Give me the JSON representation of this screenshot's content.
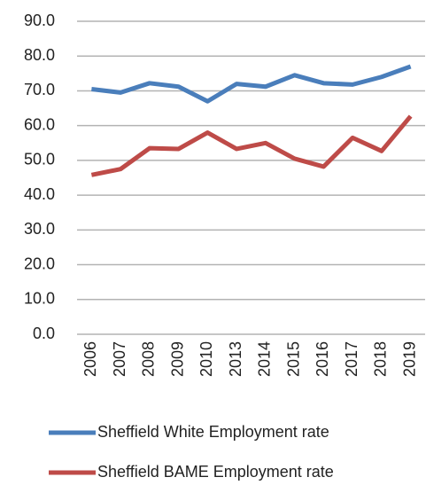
{
  "chart_data": {
    "type": "line",
    "categories": [
      "2006",
      "2007",
      "2008",
      "2009",
      "2010",
      "2013",
      "2014",
      "2015",
      "2016",
      "2017",
      "2018",
      "2019"
    ],
    "series": [
      {
        "name": "Sheffield White Employment rate",
        "color": "#4a7ebb",
        "values": [
          70.5,
          69.5,
          72.2,
          71.2,
          67.0,
          72.0,
          71.2,
          74.5,
          72.2,
          71.8,
          74.0,
          77.0
        ]
      },
      {
        "name": "Sheffield BAME Employment rate",
        "color": "#be4b48",
        "values": [
          45.8,
          47.5,
          53.5,
          53.3,
          58.0,
          53.3,
          55.0,
          50.5,
          48.2,
          56.5,
          52.7,
          62.7
        ]
      }
    ],
    "ylim": [
      0,
      90
    ],
    "yticks": [
      {
        "value": 0,
        "label": "0.0"
      },
      {
        "value": 10,
        "label": "10.0"
      },
      {
        "value": 20,
        "label": "20.0"
      },
      {
        "value": 30,
        "label": "30.0"
      },
      {
        "value": 40,
        "label": "40.0"
      },
      {
        "value": 50,
        "label": "50.0"
      },
      {
        "value": 60,
        "label": "60.0"
      },
      {
        "value": 70,
        "label": "70.0"
      },
      {
        "value": 80,
        "label": "80.0"
      },
      {
        "value": 90,
        "label": "90.0"
      }
    ],
    "grid": true
  }
}
